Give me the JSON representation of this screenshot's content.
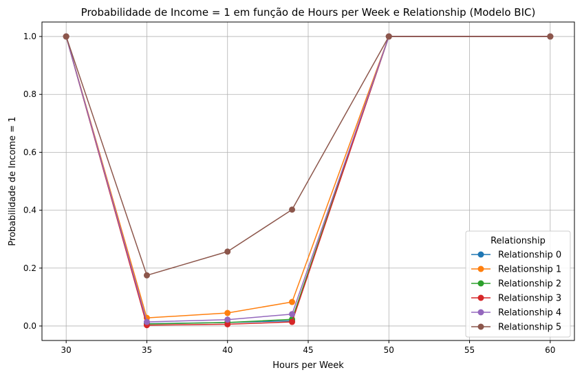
{
  "chart_data": {
    "type": "line",
    "title": "Probabilidade de Income = 1 em função de Hours per Week e Relationship (Modelo BIC)",
    "xlabel": "Hours per Week",
    "ylabel": "Probabilidade de Income = 1",
    "x": [
      30,
      35,
      40,
      44,
      50,
      60
    ],
    "xlim": [
      28.5,
      61.5
    ],
    "ylim": [
      -0.05,
      1.05
    ],
    "xticks": [
      "30",
      "35",
      "40",
      "45",
      "50",
      "55",
      "60"
    ],
    "yticks": [
      "0.0",
      "0.2",
      "0.4",
      "0.6",
      "0.8",
      "1.0"
    ],
    "grid": true,
    "legend_title": "Relationship",
    "legend_position": "lower right",
    "series": [
      {
        "name": "Relationship 0",
        "color": "#1f77b4",
        "values": [
          1.0,
          0.008,
          0.012,
          0.018,
          1.0,
          1.0
        ]
      },
      {
        "name": "Relationship 1",
        "color": "#ff7f0e",
        "values": [
          1.0,
          0.028,
          0.045,
          0.083,
          1.0,
          1.0
        ]
      },
      {
        "name": "Relationship 2",
        "color": "#2ca02c",
        "values": [
          1.0,
          0.007,
          0.012,
          0.023,
          1.0,
          1.0
        ]
      },
      {
        "name": "Relationship 3",
        "color": "#d62728",
        "values": [
          1.0,
          0.003,
          0.006,
          0.014,
          1.0,
          1.0
        ]
      },
      {
        "name": "Relationship 4",
        "color": "#9467bd",
        "values": [
          1.0,
          0.014,
          0.022,
          0.041,
          1.0,
          1.0
        ]
      },
      {
        "name": "Relationship 5",
        "color": "#8c564b",
        "values": [
          1.0,
          0.175,
          0.257,
          0.402,
          1.0,
          1.0
        ]
      }
    ]
  }
}
